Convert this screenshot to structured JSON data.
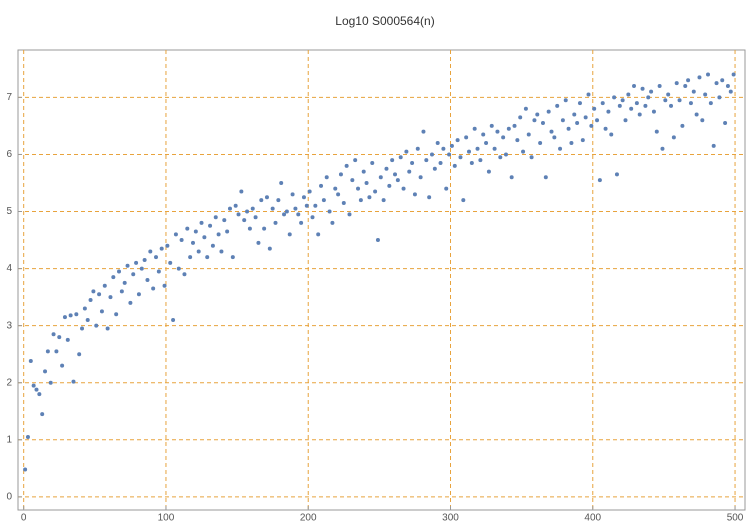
{
  "chart_data": {
    "type": "scatter",
    "title": "Log10 S000564(n)",
    "x": [
      1,
      3,
      5,
      7,
      9,
      11,
      13,
      15,
      17,
      19,
      21,
      23,
      25,
      27,
      29,
      31,
      33,
      35,
      37,
      39,
      41,
      43,
      45,
      47,
      49,
      51,
      53,
      55,
      57,
      59,
      61,
      63,
      65,
      67,
      69,
      71,
      73,
      75,
      77,
      79,
      81,
      83,
      85,
      87,
      89,
      91,
      93,
      95,
      97,
      99,
      101,
      103,
      105,
      107,
      109,
      111,
      113,
      115,
      117,
      119,
      121,
      123,
      125,
      127,
      129,
      131,
      133,
      135,
      137,
      139,
      141,
      143,
      145,
      147,
      149,
      151,
      153,
      155,
      157,
      159,
      161,
      163,
      165,
      167,
      169,
      171,
      173,
      175,
      177,
      179,
      181,
      183,
      185,
      187,
      189,
      191,
      193,
      195,
      197,
      199,
      201,
      203,
      205,
      207,
      209,
      211,
      213,
      215,
      217,
      219,
      221,
      223,
      225,
      227,
      229,
      231,
      233,
      235,
      237,
      239,
      241,
      243,
      245,
      247,
      249,
      251,
      253,
      255,
      257,
      259,
      261,
      263,
      265,
      267,
      269,
      271,
      273,
      275,
      277,
      279,
      281,
      283,
      285,
      287,
      289,
      291,
      293,
      295,
      297,
      299,
      301,
      303,
      305,
      307,
      309,
      311,
      313,
      315,
      317,
      319,
      321,
      323,
      325,
      327,
      329,
      331,
      333,
      335,
      337,
      339,
      341,
      343,
      345,
      347,
      349,
      351,
      353,
      355,
      357,
      359,
      361,
      363,
      365,
      367,
      369,
      371,
      373,
      375,
      377,
      379,
      381,
      383,
      385,
      387,
      389,
      391,
      393,
      395,
      397,
      399,
      401,
      403,
      405,
      407,
      409,
      411,
      413,
      415,
      417,
      419,
      421,
      423,
      425,
      427,
      429,
      431,
      433,
      435,
      437,
      439,
      441,
      443,
      445,
      447,
      449,
      451,
      453,
      455,
      457,
      459,
      461,
      463,
      465,
      467,
      469,
      471,
      473,
      475,
      477,
      479,
      481,
      483,
      485,
      487,
      489,
      491,
      493,
      495,
      497,
      499
    ],
    "values": [
      0.48,
      1.05,
      2.38,
      1.95,
      1.88,
      1.8,
      1.45,
      2.2,
      2.55,
      2.0,
      2.85,
      2.55,
      2.8,
      2.3,
      3.15,
      2.75,
      3.18,
      2.02,
      3.2,
      2.5,
      2.95,
      3.3,
      3.1,
      3.45,
      3.6,
      3.0,
      3.55,
      3.25,
      3.7,
      2.95,
      3.5,
      3.85,
      3.2,
      3.95,
      3.6,
      3.75,
      4.05,
      3.4,
      3.9,
      4.1,
      3.55,
      4.0,
      4.15,
      3.8,
      4.3,
      3.65,
      4.2,
      3.95,
      4.35,
      3.7,
      4.4,
      4.1,
      3.1,
      4.6,
      4.0,
      4.5,
      3.9,
      4.7,
      4.2,
      4.45,
      4.65,
      4.3,
      4.8,
      4.55,
      4.2,
      4.75,
      4.4,
      4.9,
      4.6,
      4.3,
      4.85,
      4.65,
      5.05,
      4.2,
      5.1,
      4.95,
      5.35,
      4.85,
      5.0,
      4.7,
      5.05,
      4.9,
      4.45,
      5.2,
      4.7,
      5.25,
      4.35,
      5.05,
      4.8,
      5.2,
      5.5,
      4.95,
      5.0,
      4.6,
      5.3,
      5.05,
      4.95,
      4.8,
      5.25,
      5.1,
      5.35,
      4.9,
      5.1,
      4.6,
      5.45,
      5.2,
      5.6,
      5.0,
      4.8,
      5.4,
      5.3,
      5.65,
      5.15,
      5.8,
      4.95,
      5.55,
      5.9,
      5.4,
      5.2,
      5.7,
      5.5,
      5.25,
      5.85,
      5.35,
      4.5,
      5.6,
      5.2,
      5.75,
      5.45,
      5.9,
      5.65,
      5.55,
      5.95,
      5.4,
      6.05,
      5.7,
      5.85,
      5.3,
      6.1,
      5.6,
      6.4,
      5.9,
      5.25,
      6.0,
      5.75,
      6.2,
      5.85,
      6.1,
      5.4,
      6.0,
      6.15,
      5.8,
      6.25,
      5.95,
      5.2,
      6.3,
      6.05,
      5.85,
      6.45,
      6.1,
      5.9,
      6.35,
      6.2,
      5.7,
      6.5,
      6.1,
      6.4,
      5.95,
      6.3,
      6.0,
      6.45,
      5.6,
      6.5,
      6.25,
      6.65,
      6.05,
      6.8,
      6.35,
      5.95,
      6.6,
      6.7,
      6.2,
      6.55,
      5.6,
      6.75,
      6.4,
      6.3,
      6.85,
      6.1,
      6.6,
      6.95,
      6.45,
      6.2,
      6.7,
      6.55,
      6.9,
      6.25,
      6.65,
      7.05,
      6.5,
      6.8,
      6.6,
      5.55,
      6.9,
      6.45,
      6.75,
      6.35,
      7.0,
      5.65,
      6.85,
      6.95,
      6.6,
      7.05,
      6.8,
      7.2,
      6.9,
      6.7,
      7.15,
      6.85,
      7.0,
      7.1,
      6.75,
      6.4,
      7.2,
      6.1,
      6.95,
      7.05,
      6.85,
      6.3,
      7.25,
      6.95,
      6.5,
      7.2,
      7.3,
      6.9,
      7.1,
      6.7,
      7.35,
      6.6,
      7.05,
      7.4,
      6.9,
      6.15,
      7.25,
      7.0,
      7.3,
      6.55,
      7.2,
      7.1,
      7.4
    ],
    "color": "#5e81b5",
    "xlim": [
      -4,
      507
    ],
    "ylim": [
      -0.23,
      7.83
    ],
    "xticks": [
      0,
      100,
      200,
      300,
      400,
      500
    ],
    "yticks": [
      0,
      1,
      2,
      3,
      4,
      5,
      6,
      7
    ],
    "grid": true,
    "grid_color": "#e8a33d"
  }
}
